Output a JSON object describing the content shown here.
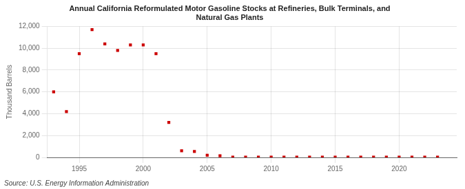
{
  "chart_data": {
    "type": "scatter",
    "title": "Annual California Reformulated Motor Gasoline Stocks at Refineries, Bulk Terminals, and\nNatural Gas Plants",
    "y_label": "Thousand Barrels",
    "annotations": [
      "Source: U.S. Energy Information Administration"
    ],
    "x": [
      1993,
      1994,
      1995,
      1996,
      1997,
      1998,
      1999,
      2000,
      2001,
      2002,
      2003,
      2004,
      2005,
      2006,
      2007,
      2008,
      2009,
      2010,
      2011,
      2012,
      2013,
      2014,
      2015,
      2016,
      2017,
      2018,
      2019,
      2020,
      2021,
      2022,
      2023
    ],
    "values": [
      6000,
      4200,
      9500,
      11700,
      10400,
      9800,
      10300,
      10300,
      9500,
      3200,
      600,
      550,
      200,
      150,
      30,
      30,
      20,
      20,
      20,
      20,
      20,
      20,
      20,
      20,
      20,
      20,
      20,
      20,
      20,
      20,
      20
    ],
    "color": "#cc0000",
    "marker": "square",
    "xlim": [
      1992.5,
      2024.5
    ],
    "ylim": [
      0,
      12000
    ],
    "xticks": [
      1995,
      2000,
      2005,
      2010,
      2015,
      2020
    ],
    "yticks": [
      0,
      {
        "value": 2000,
        "label": "2,000"
      },
      {
        "value": 4000,
        "label": "4,000"
      },
      {
        "value": 6000,
        "label": "6,000"
      },
      {
        "value": 8000,
        "label": "8,000"
      },
      {
        "value": 10000,
        "label": "10,000"
      },
      {
        "value": 12000,
        "label": "12,000"
      }
    ],
    "grid": true
  }
}
